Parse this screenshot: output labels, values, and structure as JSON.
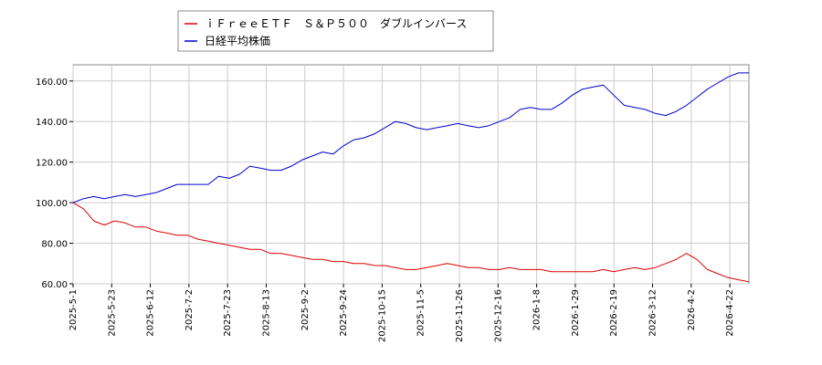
{
  "chart_data": {
    "type": "line",
    "title": "",
    "xlabel": "",
    "ylabel": "",
    "ylim": [
      60,
      168
    ],
    "yticks": [
      "60.00",
      "80.00",
      "100.00",
      "120.00",
      "140.00",
      "160.00"
    ],
    "x_tick_labels": [
      "2025-5-1",
      "2025-5-23",
      "2025-6-12",
      "2025-7-2",
      "2025-7-23",
      "2025-8-13",
      "2025-9-2",
      "2025-9-24",
      "2025-10-15",
      "2025-11-5",
      "2025-11-26",
      "2025-12-16",
      "2026-1-8",
      "2026-1-29",
      "2026-2-19",
      "2026-3-12",
      "2026-4-2",
      "2026-4-22"
    ],
    "grid": true,
    "legend_placement": "top-left",
    "series": [
      {
        "name": "ｉＦｒｅｅＥＴＦ　Ｓ＆Ｐ５００　ダブルインバース",
        "color": "#dd0000",
        "points": [
          [
            0,
            100
          ],
          [
            3,
            97
          ],
          [
            6,
            91
          ],
          [
            9,
            89
          ],
          [
            12,
            91
          ],
          [
            15,
            90
          ],
          [
            18,
            88
          ],
          [
            21,
            88
          ],
          [
            24,
            86
          ],
          [
            27,
            85
          ],
          [
            30,
            84
          ],
          [
            33,
            84
          ],
          [
            36,
            82
          ],
          [
            39,
            81
          ],
          [
            42,
            80
          ],
          [
            45,
            79
          ],
          [
            48,
            78
          ],
          [
            51,
            77
          ],
          [
            54,
            77
          ],
          [
            57,
            75
          ],
          [
            60,
            75
          ],
          [
            63,
            74
          ],
          [
            66,
            73
          ],
          [
            69,
            72
          ],
          [
            72,
            72
          ],
          [
            75,
            71
          ],
          [
            78,
            71
          ],
          [
            81,
            70
          ],
          [
            84,
            70
          ],
          [
            87,
            69
          ],
          [
            90,
            69
          ],
          [
            93,
            68
          ],
          [
            96,
            67
          ],
          [
            99,
            67
          ],
          [
            102,
            68
          ],
          [
            105,
            69
          ],
          [
            108,
            70
          ],
          [
            111,
            69
          ],
          [
            114,
            68
          ],
          [
            117,
            68
          ],
          [
            120,
            67
          ],
          [
            123,
            67
          ],
          [
            126,
            68
          ],
          [
            129,
            67
          ],
          [
            132,
            67
          ],
          [
            135,
            67
          ],
          [
            138,
            66
          ],
          [
            141,
            66
          ],
          [
            144,
            66
          ],
          [
            147,
            66
          ],
          [
            150,
            66
          ],
          [
            153,
            67
          ],
          [
            156,
            66
          ],
          [
            159,
            67
          ],
          [
            162,
            68
          ],
          [
            165,
            67
          ],
          [
            168,
            68
          ],
          [
            171,
            70
          ],
          [
            174,
            72
          ],
          [
            177,
            75
          ],
          [
            180,
            72
          ],
          [
            183,
            67
          ],
          [
            186,
            65
          ],
          [
            189,
            63
          ],
          [
            192,
            62
          ],
          [
            195,
            61
          ]
        ]
      },
      {
        "name": "日経平均株価",
        "color": "#0000cc",
        "points": [
          [
            0,
            100
          ],
          [
            3,
            102
          ],
          [
            6,
            103
          ],
          [
            9,
            102
          ],
          [
            12,
            103
          ],
          [
            15,
            104
          ],
          [
            18,
            103
          ],
          [
            21,
            104
          ],
          [
            24,
            105
          ],
          [
            27,
            107
          ],
          [
            30,
            109
          ],
          [
            33,
            109
          ],
          [
            36,
            109
          ],
          [
            39,
            109
          ],
          [
            42,
            113
          ],
          [
            45,
            112
          ],
          [
            48,
            114
          ],
          [
            51,
            118
          ],
          [
            54,
            117
          ],
          [
            57,
            116
          ],
          [
            60,
            116
          ],
          [
            63,
            118
          ],
          [
            66,
            121
          ],
          [
            69,
            123
          ],
          [
            72,
            125
          ],
          [
            75,
            124
          ],
          [
            78,
            128
          ],
          [
            81,
            131
          ],
          [
            84,
            132
          ],
          [
            87,
            134
          ],
          [
            90,
            137
          ],
          [
            93,
            140
          ],
          [
            96,
            139
          ],
          [
            99,
            137
          ],
          [
            102,
            136
          ],
          [
            105,
            137
          ],
          [
            108,
            138
          ],
          [
            111,
            139
          ],
          [
            114,
            138
          ],
          [
            117,
            137
          ],
          [
            120,
            138
          ],
          [
            123,
            140
          ],
          [
            126,
            142
          ],
          [
            129,
            146
          ],
          [
            132,
            147
          ],
          [
            135,
            146
          ],
          [
            138,
            146
          ],
          [
            141,
            149
          ],
          [
            144,
            153
          ],
          [
            147,
            156
          ],
          [
            150,
            157
          ],
          [
            153,
            158
          ],
          [
            156,
            153
          ],
          [
            159,
            148
          ],
          [
            162,
            147
          ],
          [
            165,
            146
          ],
          [
            168,
            144
          ],
          [
            171,
            143
          ],
          [
            174,
            145
          ],
          [
            177,
            148
          ],
          [
            180,
            152
          ],
          [
            183,
            156
          ],
          [
            186,
            159
          ],
          [
            189,
            162
          ],
          [
            192,
            164
          ],
          [
            195,
            164
          ]
        ]
      }
    ]
  }
}
